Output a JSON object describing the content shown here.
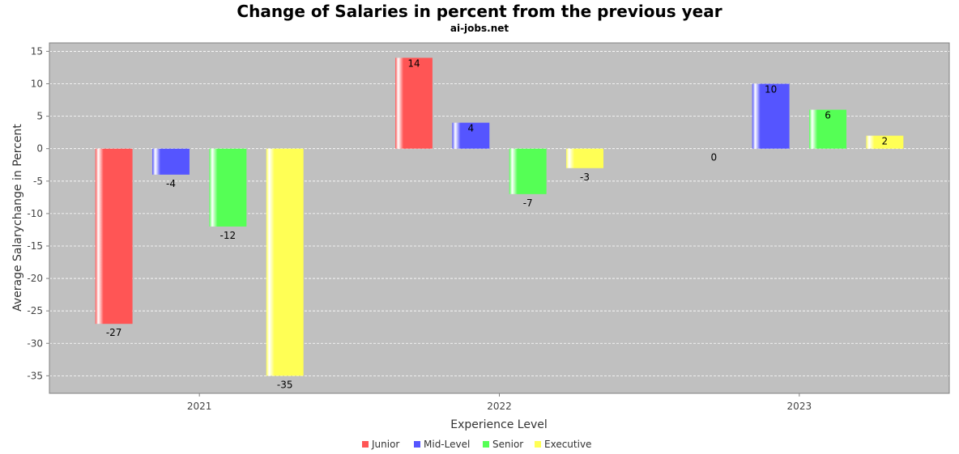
{
  "chart_data": {
    "type": "bar",
    "title": "Change of Salaries in percent from the previous year",
    "subtitle": "ai-jobs.net",
    "xlabel": "Experience Level",
    "ylabel": "Average Salarychange in Percent",
    "categories": [
      "2021",
      "2022",
      "2023"
    ],
    "series": [
      {
        "name": "Junior",
        "color": "#ff5555",
        "values": [
          -27,
          14,
          0
        ]
      },
      {
        "name": "Mid-Level",
        "color": "#5555ff",
        "values": [
          -4,
          4,
          10
        ]
      },
      {
        "name": "Senior",
        "color": "#55ff55",
        "values": [
          -12,
          -7,
          6
        ]
      },
      {
        "name": "Executive",
        "color": "#ffff55",
        "values": [
          -35,
          -3,
          2
        ]
      }
    ],
    "ylim": [
      -37.7,
      16.3
    ],
    "yticks": [
      "15",
      "10",
      "5",
      "0",
      "-5",
      "-10",
      "-15",
      "-20",
      "-25",
      "-30",
      "-35"
    ],
    "grid": true,
    "legend_position": "bottom",
    "plot_background": "#c0c0c0"
  }
}
